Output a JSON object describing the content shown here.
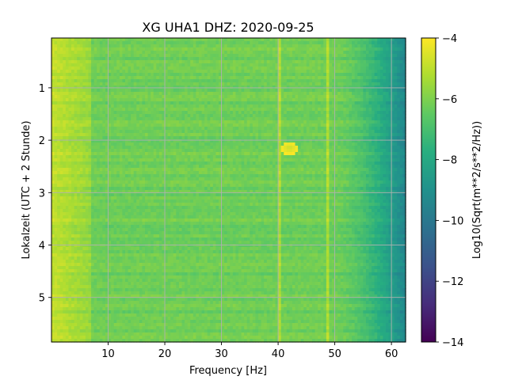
{
  "chart_data": {
    "type": "heatmap",
    "title": "XG UHA1  DHZ: 2020-09-25",
    "xlabel": "Frequency [Hz]",
    "ylabel": "Lokalzeit (UTC + 2 Stunde)",
    "xlim": [
      0,
      62.5
    ],
    "ylim": [
      5.85,
      0.05
    ],
    "xticks": [
      10,
      20,
      30,
      40,
      50,
      60
    ],
    "yticks": [
      1,
      2,
      3,
      4,
      5
    ],
    "grid": true,
    "colormap": "viridis",
    "colorbar": {
      "label": "Log10(Sqrt(m**2/s**2/Hz))",
      "range": [
        -14,
        -4
      ],
      "ticks": [
        -4,
        -6,
        -8,
        -10,
        -12,
        -14
      ],
      "tick_labels": [
        "−4",
        "−6",
        "−8",
        "−10",
        "−12",
        "−14"
      ]
    },
    "features": {
      "background_level": -6.2,
      "high_energy_band_hz": [
        0,
        7
      ],
      "high_energy_level": -4.9,
      "rolloff_start_hz": 50,
      "rolloff_end_level": -9.4,
      "vertical_lines_hz": [
        40.2,
        48.8
      ],
      "burst_center": {
        "freq_hz": 42,
        "time_h": 2.15,
        "level": -4.8
      }
    }
  }
}
